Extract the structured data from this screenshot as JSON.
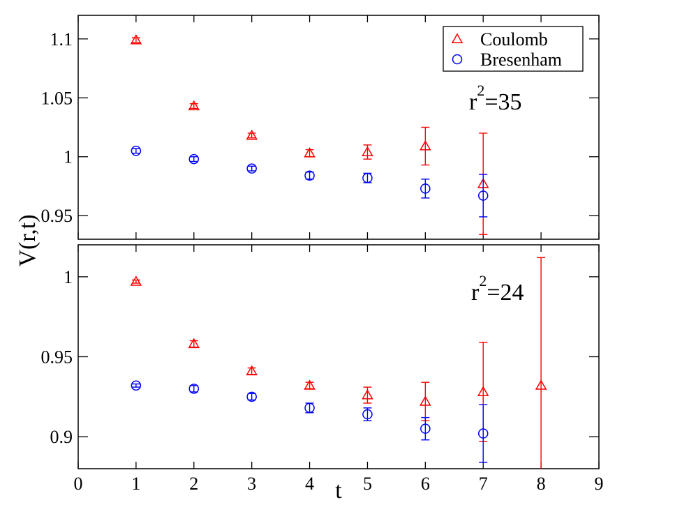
{
  "chart_data": {
    "type": "scatter",
    "xlabel": "t",
    "ylabel": "V(r,t)",
    "xlim": [
      0,
      9
    ],
    "xticks": [
      "0",
      "1",
      "2",
      "3",
      "4",
      "5",
      "6",
      "7",
      "8",
      "9"
    ],
    "legend": {
      "placement": "top-right of top panel",
      "entries": [
        {
          "label": "Coulomb",
          "marker": "triangle",
          "color": "#ff0000"
        },
        {
          "label": "Bresenham",
          "marker": "circle",
          "color": "#0000ff"
        }
      ]
    },
    "panels": [
      {
        "id": "top",
        "annotation": {
          "base": "r",
          "sup": "2",
          "rest": "=35"
        },
        "ylim": [
          0.93,
          1.12
        ],
        "yticks": [
          "0.95",
          "1",
          "1.05",
          "1.1"
        ],
        "ytick_values": [
          0.95,
          1.0,
          1.05,
          1.1
        ],
        "series": [
          {
            "name": "Coulomb",
            "marker": "triangle",
            "color": "#ff0000",
            "x": [
              1,
              2,
              3,
              4,
              5,
              6,
              7
            ],
            "y": [
              1.099,
              1.043,
              1.018,
              1.003,
              1.004,
              1.009,
              0.977
            ],
            "err": [
              0.002,
              0.002,
              0.002,
              0.003,
              0.006,
              0.016,
              0.043
            ]
          },
          {
            "name": "Bresenham",
            "marker": "circle",
            "color": "#0000ff",
            "x": [
              1,
              2,
              3,
              4,
              5,
              6,
              7
            ],
            "y": [
              1.005,
              0.998,
              0.99,
              0.984,
              0.982,
              0.973,
              0.967
            ],
            "err": [
              0.002,
              0.002,
              0.002,
              0.003,
              0.004,
              0.008,
              0.018
            ]
          }
        ]
      },
      {
        "id": "bottom",
        "annotation": {
          "base": "r",
          "sup": "2",
          "rest": "=24"
        },
        "ylim": [
          0.88,
          1.02
        ],
        "yticks": [
          "0.9",
          "0.95",
          "1"
        ],
        "ytick_values": [
          0.9,
          0.95,
          1.0
        ],
        "series": [
          {
            "name": "Coulomb",
            "marker": "triangle",
            "color": "#ff0000",
            "x": [
              1,
              2,
              3,
              4,
              5,
              6,
              7,
              8
            ],
            "y": [
              0.997,
              0.958,
              0.941,
              0.932,
              0.926,
              0.922,
              0.928,
              0.932
            ],
            "err": [
              0.001,
              0.002,
              0.002,
              0.002,
              0.005,
              0.012,
              0.031,
              0.08
            ]
          },
          {
            "name": "Bresenham",
            "marker": "circle",
            "color": "#0000ff",
            "x": [
              1,
              2,
              3,
              4,
              5,
              6,
              7
            ],
            "y": [
              0.932,
              0.93,
              0.925,
              0.918,
              0.914,
              0.905,
              0.902
            ],
            "err": [
              0.001,
              0.002,
              0.002,
              0.003,
              0.004,
              0.007,
              0.018
            ]
          }
        ]
      }
    ]
  }
}
